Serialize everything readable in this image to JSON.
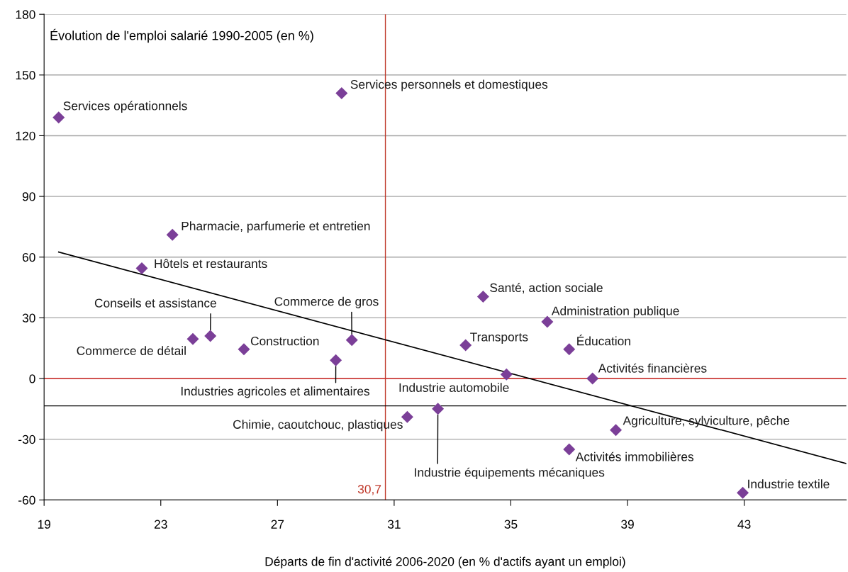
{
  "chart_data": {
    "type": "scatter",
    "title": "Évolution de l'emploi salarié 1990-2005 (en %)",
    "xlabel": "Départs de fin d'activité 2006-2020 (en % d'actifs ayant un emploi)",
    "xlim": [
      19,
      46.5
    ],
    "xticks": [
      19,
      23,
      27,
      31,
      35,
      39,
      43
    ],
    "ylim": [
      -60,
      180
    ],
    "yticks": [
      -60,
      -30,
      0,
      30,
      60,
      90,
      120,
      150,
      180
    ],
    "grid": "y",
    "legend": false,
    "marker": "diamond",
    "series": [
      {
        "type": "scatter",
        "color": "#7b3f98",
        "x": [
          19.5,
          29.2,
          23.4,
          22.35,
          24.1,
          24.7,
          25.85,
          29.0,
          29.55,
          34.05,
          36.25,
          33.45,
          37.0,
          34.85,
          37.8,
          31.45,
          32.5,
          38.6,
          37.0,
          42.95
        ],
        "values": [
          129,
          141,
          71,
          54.5,
          19.5,
          21,
          14.5,
          9,
          19,
          40.5,
          28,
          16.5,
          14.5,
          2,
          0,
          -19,
          -15,
          -25.5,
          -35,
          -56.5
        ]
      },
      {
        "type": "line",
        "marker": "none",
        "color": "#000000",
        "x": [
          19.5,
          46.5
        ],
        "values": [
          62.5,
          -42
        ]
      }
    ],
    "ref_lines": [
      {
        "axis": "x",
        "value": 30.7,
        "label": "30,7",
        "color": "#c0392b"
      },
      {
        "axis": "y",
        "value": 0,
        "label": null,
        "color": "#d9302c"
      },
      {
        "axis": "y",
        "value": -13.5,
        "label": null,
        "color": "#000000"
      }
    ],
    "annotations": [
      {
        "text": "Services opérationnels",
        "x": 19.5,
        "y": 129
      },
      {
        "text": "Services personnels et domestiques",
        "x": 29.2,
        "y": 141
      },
      {
        "text": "Pharmacie, parfumerie et entretien",
        "x": 23.4,
        "y": 71
      },
      {
        "text": "Hôtels et restaurants",
        "x": 22.35,
        "y": 54.5
      },
      {
        "text": "Commerce de détail",
        "x": 24.1,
        "y": 19.5
      },
      {
        "text": "Conseils et assistance",
        "x": 24.7,
        "y": 21
      },
      {
        "text": "Construction",
        "x": 25.85,
        "y": 14.5
      },
      {
        "text": "Industries agricoles et alimentaires",
        "x": 29.0,
        "y": 9
      },
      {
        "text": "Commerce de gros",
        "x": 29.55,
        "y": 19
      },
      {
        "text": "Santé, action sociale",
        "x": 34.05,
        "y": 40.5
      },
      {
        "text": "Administration publique",
        "x": 36.25,
        "y": 28
      },
      {
        "text": "Transports",
        "x": 33.45,
        "y": 16.5
      },
      {
        "text": "Éducation",
        "x": 37.0,
        "y": 14.5
      },
      {
        "text": "Industrie automobile",
        "x": 34.85,
        "y": 2
      },
      {
        "text": "Activités financières",
        "x": 37.8,
        "y": 0
      },
      {
        "text": "Chimie, caoutchouc, plastiques",
        "x": 31.45,
        "y": -19
      },
      {
        "text": "Industrie équipements mécaniques",
        "x": 32.5,
        "y": -15
      },
      {
        "text": "Agriculture, sylviculture, pêche",
        "x": 38.6,
        "y": -25.5
      },
      {
        "text": "Activités immobilières",
        "x": 37.0,
        "y": -35
      },
      {
        "text": "Industrie textile",
        "x": 42.95,
        "y": -56.5
      }
    ]
  }
}
